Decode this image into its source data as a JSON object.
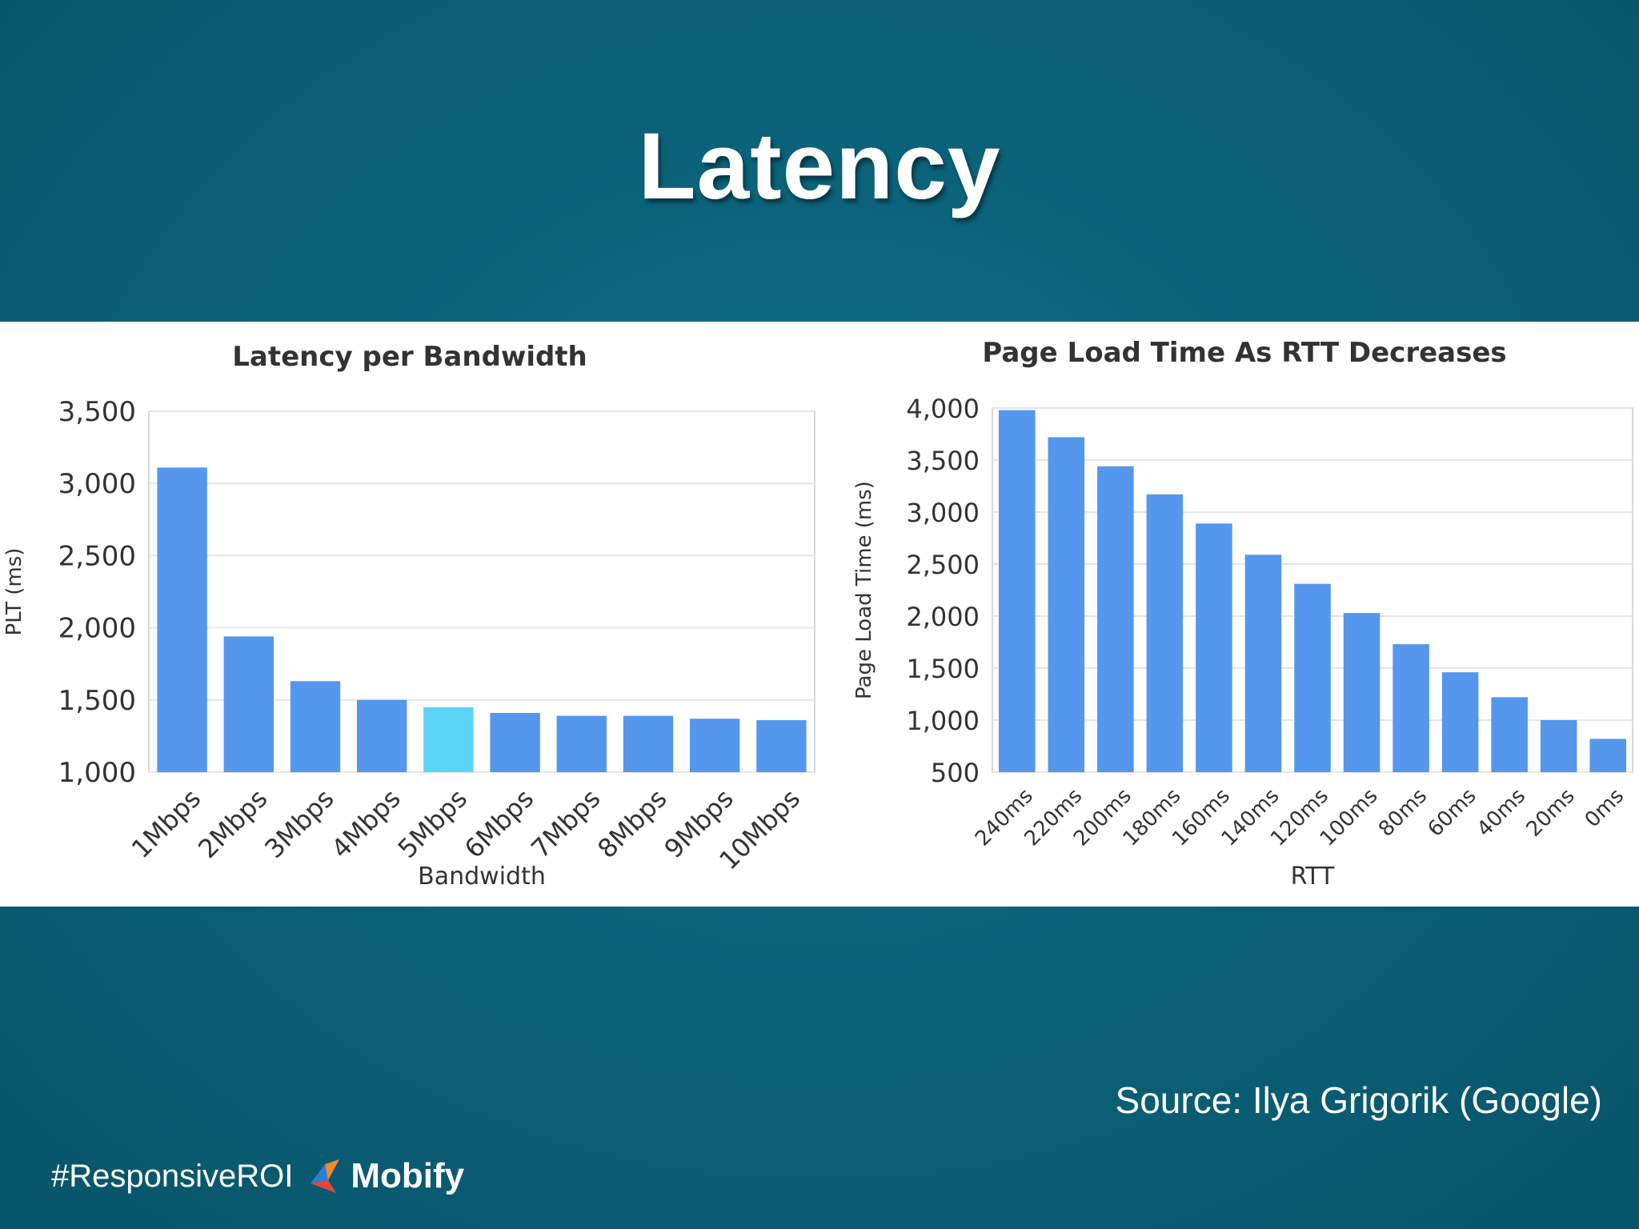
{
  "slide": {
    "title": "Latency",
    "source": "Source: Ilya Grigorik (Google)",
    "hashtag": "#ResponsiveROI",
    "brand": "Mobify"
  },
  "colors": {
    "bar": "#5597ec",
    "highlight": "#5bd4f7",
    "grid": "#e3e6ea",
    "text": "#333333",
    "logo_blue": "#2a7fd4",
    "logo_orange": "#f08c2a",
    "logo_red": "#e4473a"
  },
  "icons": {
    "logo": "mobify-logo-icon"
  },
  "chart_data": [
    {
      "type": "bar",
      "title": "Latency per Bandwidth",
      "xlabel": "Bandwidth",
      "ylabel": "PLT (ms)",
      "ylim": [
        1000,
        3500
      ],
      "yticks": [
        1000,
        1500,
        2000,
        2500,
        3000,
        3500
      ],
      "ytick_labels": [
        "1,000",
        "1,500",
        "2,000",
        "2,500",
        "3,000",
        "3,500"
      ],
      "categories": [
        "1Mbps",
        "2Mbps",
        "3Mbps",
        "4Mbps",
        "5Mbps",
        "6Mbps",
        "7Mbps",
        "8Mbps",
        "9Mbps",
        "10Mbps"
      ],
      "values": [
        3110,
        1940,
        1630,
        1500,
        1450,
        1410,
        1390,
        1390,
        1370,
        1360
      ],
      "highlight_index": 4,
      "grid": true,
      "legend": "none"
    },
    {
      "type": "bar",
      "title": "Page Load Time As RTT Decreases",
      "xlabel": "RTT",
      "ylabel": "Page Load Time (ms)",
      "ylim": [
        500,
        4000
      ],
      "yticks": [
        500,
        1000,
        1500,
        2000,
        2500,
        3000,
        3500,
        4000
      ],
      "ytick_labels": [
        "500",
        "1,000",
        "1,500",
        "2,000",
        "2,500",
        "3,000",
        "3,500",
        "4,000"
      ],
      "categories": [
        "240ms",
        "220ms",
        "200ms",
        "180ms",
        "160ms",
        "140ms",
        "120ms",
        "100ms",
        "80ms",
        "60ms",
        "40ms",
        "20ms",
        "0ms"
      ],
      "values": [
        3980,
        3720,
        3440,
        3170,
        2890,
        2590,
        2310,
        2030,
        1730,
        1460,
        1220,
        1000,
        820
      ],
      "grid": true,
      "legend": "none"
    }
  ]
}
